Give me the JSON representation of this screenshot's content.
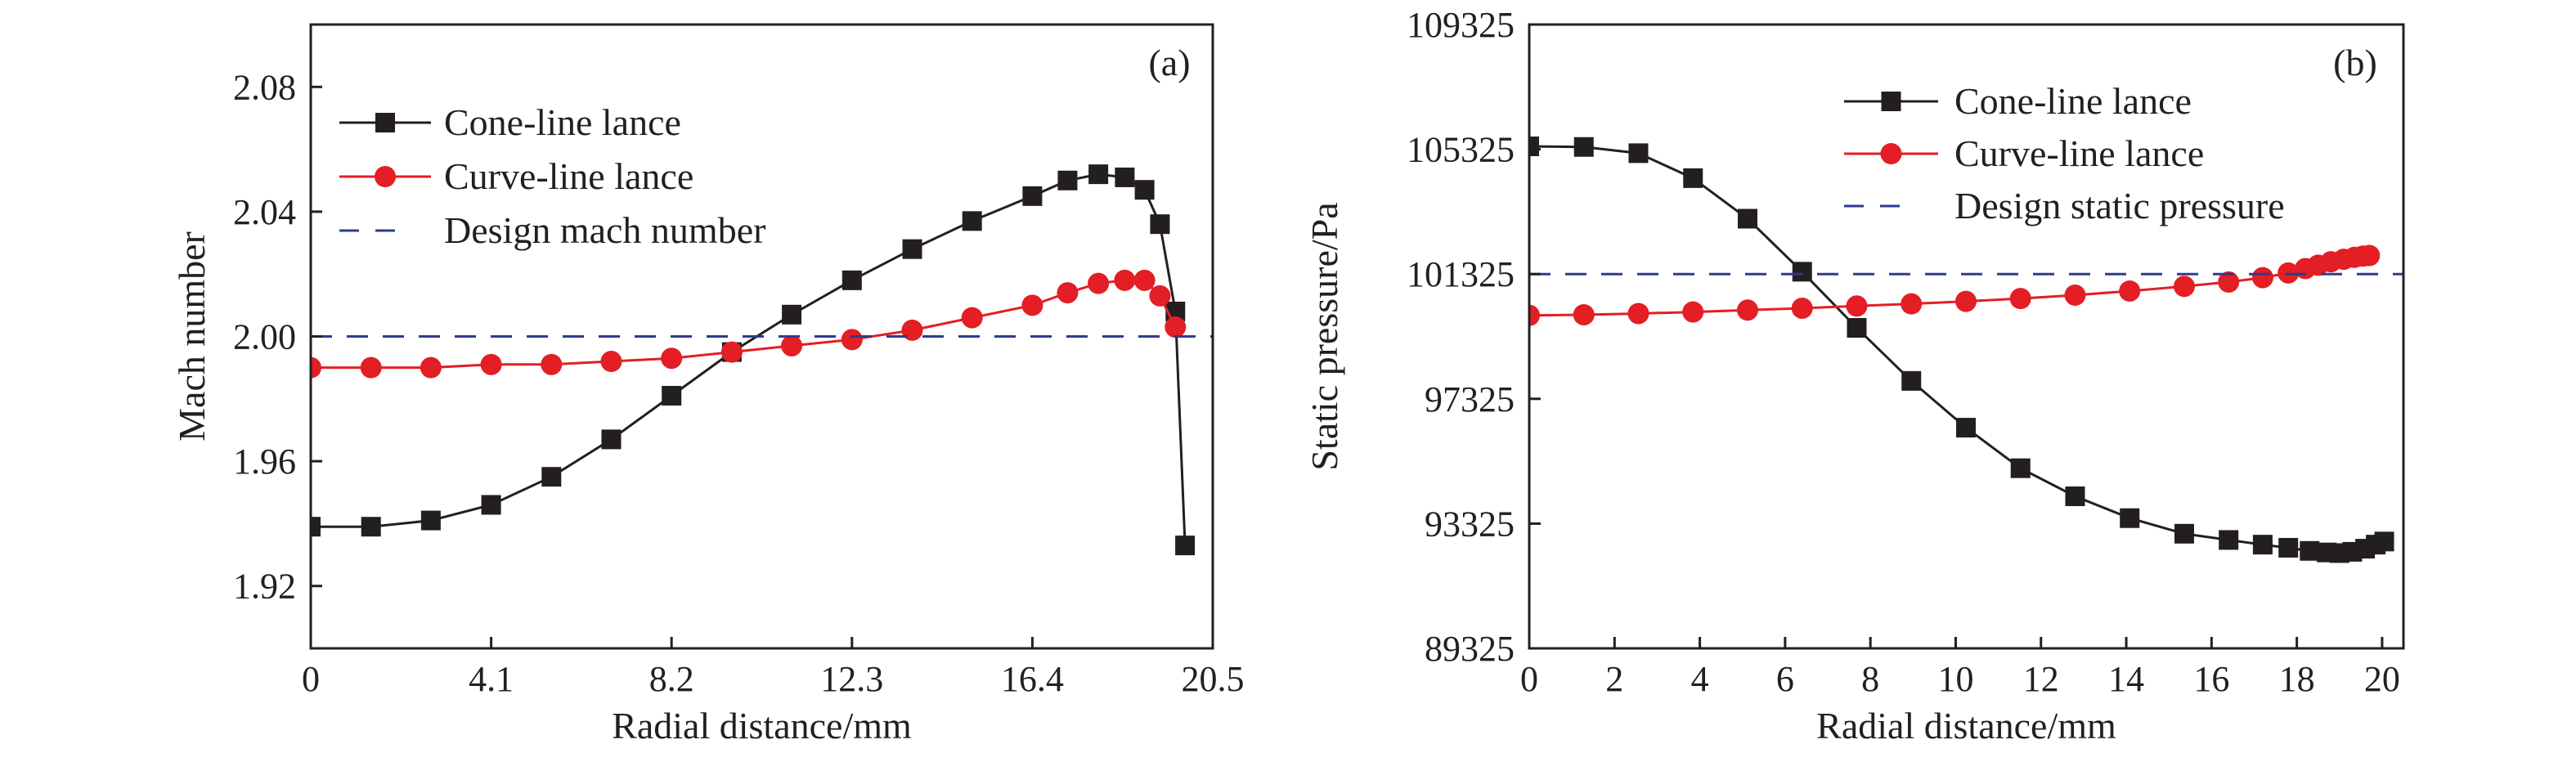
{
  "chart_data": [
    {
      "type": "line",
      "panel_label": "(a)",
      "xlabel": "Radial distance/mm",
      "ylabel": "Mach number",
      "xlim": [
        0,
        20.5
      ],
      "ylim": [
        1.9,
        2.1
      ],
      "xticks": [
        0,
        4.1,
        8.2,
        12.3,
        16.4,
        20.5
      ],
      "xtick_labels": [
        "0",
        "4.1",
        "8.2",
        "12.3",
        "16.4",
        "20.5"
      ],
      "yticks": [
        1.92,
        1.96,
        2.0,
        2.04,
        2.08
      ],
      "ytick_labels": [
        "1.92",
        "1.96",
        "2.00",
        "2.04",
        "2.08"
      ],
      "legend_position": "upper-left",
      "grid": false,
      "series": [
        {
          "name": "Cone-line lance",
          "color": "#231f20",
          "marker": "square",
          "x": [
            0,
            1.37,
            2.73,
            4.1,
            5.47,
            6.83,
            8.2,
            9.57,
            10.93,
            12.3,
            13.67,
            15.03,
            16.4,
            17.2,
            17.9,
            18.5,
            18.95,
            19.3,
            19.65,
            19.87
          ],
          "y": [
            1.939,
            1.939,
            1.941,
            1.946,
            1.955,
            1.967,
            1.981,
            1.995,
            2.007,
            2.018,
            2.028,
            2.037,
            2.045,
            2.05,
            2.052,
            2.051,
            2.047,
            2.036,
            2.008,
            1.933
          ]
        },
        {
          "name": "Curve-line lance",
          "color": "#e31e24",
          "marker": "circle",
          "x": [
            0,
            1.37,
            2.73,
            4.1,
            5.47,
            6.83,
            8.2,
            9.57,
            10.93,
            12.3,
            13.67,
            15.03,
            16.4,
            17.2,
            17.9,
            18.5,
            18.95,
            19.3,
            19.65
          ],
          "y": [
            1.99,
            1.99,
            1.99,
            1.991,
            1.991,
            1.992,
            1.993,
            1.995,
            1.997,
            1.999,
            2.002,
            2.006,
            2.01,
            2.014,
            2.017,
            2.018,
            2.018,
            2.013,
            2.003
          ]
        },
        {
          "name": "Design mach number",
          "color": "#2e3b8f",
          "style": "dashed",
          "x": [
            0,
            20.5
          ],
          "y": [
            2.0,
            2.0
          ]
        }
      ]
    },
    {
      "type": "line",
      "panel_label": "(b)",
      "xlabel": "Radial distance/mm",
      "ylabel": "Static pressure/Pa",
      "xlim": [
        0,
        20.5
      ],
      "ylim": [
        89325,
        109325
      ],
      "xticks": [
        0,
        2,
        4,
        6,
        8,
        10,
        12,
        14,
        16,
        18,
        20
      ],
      "xtick_labels": [
        "0",
        "2",
        "4",
        "6",
        "8",
        "10",
        "12",
        "14",
        "16",
        "18",
        "20"
      ],
      "yticks": [
        89325,
        93325,
        97325,
        101325,
        105325,
        109325
      ],
      "ytick_labels": [
        "89325",
        "93325",
        "97325",
        "101325",
        "105325",
        "109325"
      ],
      "legend_position": "upper-right",
      "grid": false,
      "series": [
        {
          "name": "Cone-line lance",
          "color": "#231f20",
          "marker": "square",
          "x": [
            0,
            1.28,
            2.56,
            3.84,
            5.12,
            6.4,
            7.68,
            8.96,
            10.24,
            11.52,
            12.8,
            14.08,
            15.36,
            16.4,
            17.2,
            17.8,
            18.3,
            18.7,
            19.0,
            19.3,
            19.6,
            19.85,
            20.05
          ],
          "y": [
            105420,
            105400,
            105200,
            104400,
            103100,
            101400,
            99600,
            97900,
            96400,
            95100,
            94200,
            93500,
            93000,
            92800,
            92650,
            92550,
            92450,
            92400,
            92380,
            92420,
            92520,
            92650,
            92750
          ]
        },
        {
          "name": "Curve-line lance",
          "color": "#e31e24",
          "marker": "circle",
          "x": [
            0,
            1.28,
            2.56,
            3.84,
            5.12,
            6.4,
            7.68,
            8.96,
            10.24,
            11.52,
            12.8,
            14.08,
            15.36,
            16.4,
            17.2,
            17.8,
            18.2,
            18.5,
            18.8,
            19.1,
            19.35,
            19.55,
            19.7
          ],
          "y": [
            100000,
            100020,
            100060,
            100110,
            100170,
            100230,
            100300,
            100370,
            100450,
            100540,
            100650,
            100780,
            100930,
            101070,
            101210,
            101360,
            101500,
            101610,
            101720,
            101800,
            101860,
            101900,
            101920
          ]
        },
        {
          "name": "Design static pressure",
          "color": "#2e3b8f",
          "style": "dashed",
          "x": [
            0,
            20.5
          ],
          "y": [
            101325,
            101325
          ]
        }
      ]
    }
  ]
}
